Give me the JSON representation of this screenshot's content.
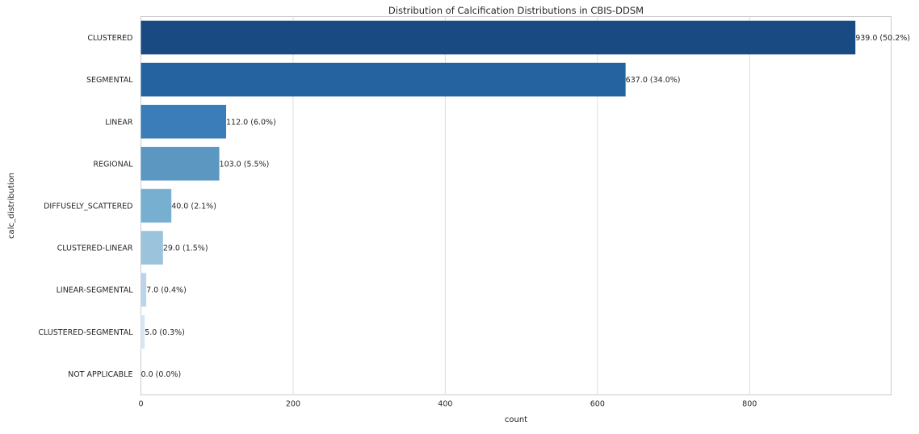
{
  "chart_data": {
    "type": "bar",
    "orientation": "horizontal",
    "title": "Distribution of Calcification Distributions in CBIS-DDSM",
    "xlabel": "count",
    "ylabel": "calc_distribution",
    "categories": [
      "CLUSTERED",
      "SEGMENTAL",
      "LINEAR",
      "REGIONAL",
      "DIFFUSELY_SCATTERED",
      "CLUSTERED-LINEAR",
      "LINEAR-SEGMENTAL",
      "CLUSTERED-SEGMENTAL",
      "NOT APPLICABLE"
    ],
    "values": [
      939,
      637,
      112,
      103,
      40,
      29,
      7,
      5,
      0
    ],
    "data_labels": [
      "939.0 (50.2%)",
      "637.0 (34.0%)",
      "112.0 (6.0%)",
      "103.0 (5.5%)",
      "40.0 (2.1%)",
      "29.0 (1.5%)",
      "7.0 (0.4%)",
      "5.0 (0.3%)",
      "0.0 (0.0%)"
    ],
    "colors": [
      "#1a4a82",
      "#2563a0",
      "#3a7db8",
      "#5b97c1",
      "#77afd0",
      "#9bc3dc",
      "#bcd4ea",
      "#d8e6f3",
      "#eef4fa"
    ],
    "xlim": [
      0,
      986
    ],
    "xticks": [
      0,
      200,
      400,
      600,
      800
    ],
    "grid": true,
    "legend": "none"
  }
}
